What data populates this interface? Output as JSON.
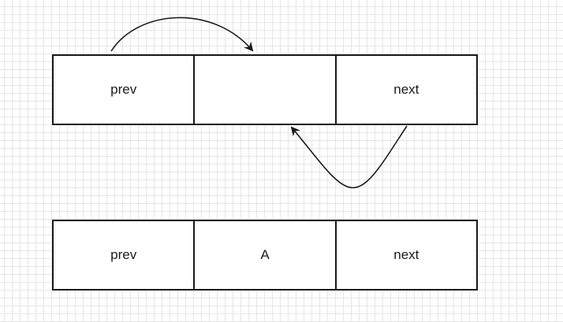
{
  "diagram": {
    "nodes": [
      {
        "id": "top",
        "cells": [
          "prev",
          "",
          "next"
        ]
      },
      {
        "id": "bottom",
        "cells": [
          "prev",
          "A",
          "next"
        ]
      }
    ],
    "edges": [
      {
        "from": "top.prev",
        "to": "top.middle"
      },
      {
        "from": "top.next",
        "to": "top.middle"
      }
    ],
    "colors": {
      "stroke": "#1a1a1a",
      "grid": "#e6e6e6",
      "background": "#ffffff"
    }
  }
}
